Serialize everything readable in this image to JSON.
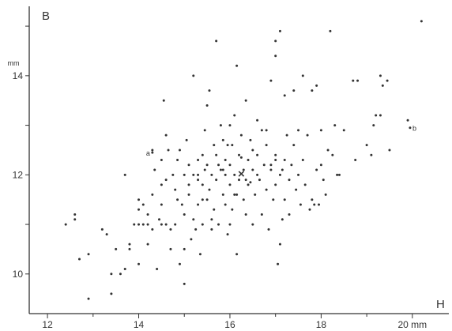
{
  "chart_data": {
    "type": "scatter",
    "panel_label": "B",
    "xlabel": "H",
    "ylabel": "",
    "y_unit": "mm",
    "x_unit": "mm",
    "xlim": [
      11.6,
      20.8
    ],
    "ylim": [
      9.2,
      15.4
    ],
    "x_ticks": [
      12,
      14,
      16,
      18,
      20
    ],
    "x_tick_labels": [
      "12",
      "14",
      "16",
      "18",
      "20 mm"
    ],
    "y_ticks": [
      10,
      12,
      14
    ],
    "y_tick_labels": [
      "10",
      "12",
      "14"
    ],
    "mean_marker": {
      "label": "×",
      "x": 16.25,
      "y": 12.02
    },
    "annotations": [
      {
        "text": "a",
        "x": 14.3,
        "y": 12.45
      },
      {
        "text": "b",
        "x": 19.95,
        "y": 12.95
      }
    ],
    "points": [
      [
        12.4,
        11.0
      ],
      [
        12.6,
        11.1
      ],
      [
        12.6,
        11.2
      ],
      [
        12.7,
        10.3
      ],
      [
        12.9,
        10.4
      ],
      [
        12.9,
        9.5
      ],
      [
        13.2,
        10.9
      ],
      [
        13.3,
        10.8
      ],
      [
        13.4,
        9.6
      ],
      [
        13.4,
        10.0
      ],
      [
        13.5,
        10.5
      ],
      [
        13.6,
        10.0
      ],
      [
        13.7,
        12.0
      ],
      [
        13.7,
        10.1
      ],
      [
        13.8,
        10.6
      ],
      [
        13.8,
        10.5
      ],
      [
        13.9,
        11.0
      ],
      [
        14.0,
        11.0
      ],
      [
        14.0,
        11.3
      ],
      [
        14.0,
        11.5
      ],
      [
        14.0,
        10.2
      ],
      [
        14.1,
        11.0
      ],
      [
        14.1,
        11.4
      ],
      [
        14.2,
        11.0
      ],
      [
        14.2,
        11.2
      ],
      [
        14.2,
        10.6
      ],
      [
        14.3,
        12.5
      ],
      [
        14.3,
        11.6
      ],
      [
        14.3,
        10.9
      ],
      [
        14.35,
        12.1
      ],
      [
        14.4,
        10.1
      ],
      [
        14.45,
        11.1
      ],
      [
        14.5,
        12.3
      ],
      [
        14.5,
        11.8
      ],
      [
        14.5,
        11.4
      ],
      [
        14.5,
        11.0
      ],
      [
        14.55,
        13.5
      ],
      [
        14.6,
        12.8
      ],
      [
        14.6,
        11.9
      ],
      [
        14.6,
        11.0
      ],
      [
        14.7,
        10.5
      ],
      [
        14.7,
        10.9
      ],
      [
        14.75,
        12.0
      ],
      [
        14.8,
        11.7
      ],
      [
        14.8,
        11.0
      ],
      [
        14.85,
        12.3
      ],
      [
        14.85,
        11.5
      ],
      [
        14.9,
        10.2
      ],
      [
        14.9,
        12.5
      ],
      [
        15.0,
        12.0
      ],
      [
        15.0,
        11.2
      ],
      [
        15.0,
        10.5
      ],
      [
        15.0,
        9.8
      ],
      [
        15.05,
        12.7
      ],
      [
        15.1,
        11.6
      ],
      [
        15.1,
        11.8
      ],
      [
        15.1,
        12.2
      ],
      [
        15.15,
        10.7
      ],
      [
        15.2,
        14.0
      ],
      [
        15.2,
        12.0
      ],
      [
        15.2,
        11.1
      ],
      [
        15.25,
        10.9
      ],
      [
        15.3,
        11.4
      ],
      [
        15.3,
        12.3
      ],
      [
        15.3,
        11.9
      ],
      [
        15.35,
        10.4
      ],
      [
        15.4,
        11.8
      ],
      [
        15.4,
        12.4
      ],
      [
        15.4,
        11.0
      ],
      [
        15.45,
        12.1
      ],
      [
        15.45,
        12.9
      ],
      [
        15.5,
        13.4
      ],
      [
        15.5,
        12.2
      ],
      [
        15.5,
        11.5
      ],
      [
        15.55,
        13.7
      ],
      [
        15.55,
        11.7
      ],
      [
        15.6,
        12.0
      ],
      [
        15.6,
        10.9
      ],
      [
        15.65,
        12.6
      ],
      [
        15.65,
        11.3
      ],
      [
        15.7,
        14.7
      ],
      [
        15.7,
        12.4
      ],
      [
        15.7,
        11.9
      ],
      [
        15.75,
        11.0
      ],
      [
        15.8,
        12.1
      ],
      [
        15.8,
        13.0
      ],
      [
        15.85,
        12.7
      ],
      [
        15.85,
        11.6
      ],
      [
        15.9,
        12.3
      ],
      [
        15.9,
        12.0
      ],
      [
        15.9,
        11.4
      ],
      [
        15.95,
        10.8
      ],
      [
        16.0,
        13.0
      ],
      [
        16.0,
        12.2
      ],
      [
        16.0,
        11.8
      ],
      [
        16.0,
        11.0
      ],
      [
        16.05,
        12.6
      ],
      [
        16.05,
        11.3
      ],
      [
        16.1,
        12.0
      ],
      [
        16.1,
        13.2
      ],
      [
        16.1,
        11.6
      ],
      [
        16.15,
        10.4
      ],
      [
        16.15,
        14.2
      ],
      [
        16.2,
        12.4
      ],
      [
        16.2,
        11.9
      ],
      [
        16.25,
        12.8
      ],
      [
        16.3,
        12.1
      ],
      [
        16.3,
        11.5
      ],
      [
        16.35,
        13.5
      ],
      [
        16.35,
        11.2
      ],
      [
        16.4,
        12.3
      ],
      [
        16.4,
        11.8
      ],
      [
        16.45,
        12.7
      ],
      [
        16.5,
        11.0
      ],
      [
        16.5,
        12.1
      ],
      [
        16.55,
        11.6
      ],
      [
        16.6,
        13.1
      ],
      [
        16.6,
        12.4
      ],
      [
        16.65,
        11.9
      ],
      [
        16.7,
        12.9
      ],
      [
        16.7,
        11.2
      ],
      [
        16.75,
        12.2
      ],
      [
        16.8,
        11.7
      ],
      [
        16.8,
        12.6
      ],
      [
        16.85,
        10.9
      ],
      [
        16.9,
        13.9
      ],
      [
        16.9,
        12.1
      ],
      [
        16.95,
        11.5
      ],
      [
        17.0,
        14.7
      ],
      [
        17.0,
        14.4
      ],
      [
        17.0,
        12.4
      ],
      [
        17.0,
        11.8
      ],
      [
        17.05,
        10.2
      ],
      [
        17.1,
        14.9
      ],
      [
        17.1,
        12.0
      ],
      [
        17.1,
        10.6
      ],
      [
        17.15,
        11.1
      ],
      [
        17.2,
        13.6
      ],
      [
        17.2,
        12.3
      ],
      [
        17.2,
        11.5
      ],
      [
        17.25,
        12.8
      ],
      [
        17.3,
        11.9
      ],
      [
        17.3,
        11.2
      ],
      [
        17.35,
        12.2
      ],
      [
        17.4,
        13.7
      ],
      [
        17.4,
        12.6
      ],
      [
        17.45,
        11.7
      ],
      [
        17.5,
        12.0
      ],
      [
        17.5,
        12.9
      ],
      [
        17.55,
        11.4
      ],
      [
        17.6,
        14.0
      ],
      [
        17.6,
        12.3
      ],
      [
        17.65,
        11.8
      ],
      [
        17.7,
        12.8
      ],
      [
        17.75,
        11.3
      ],
      [
        17.8,
        13.7
      ],
      [
        17.8,
        11.5
      ],
      [
        17.85,
        11.4
      ],
      [
        17.9,
        13.8
      ],
      [
        17.9,
        12.1
      ],
      [
        17.95,
        11.4
      ],
      [
        18.0,
        12.9
      ],
      [
        18.0,
        12.2
      ],
      [
        18.05,
        11.9
      ],
      [
        18.1,
        11.6
      ],
      [
        18.15,
        12.5
      ],
      [
        18.2,
        14.9
      ],
      [
        18.25,
        12.4
      ],
      [
        18.3,
        13.0
      ],
      [
        18.35,
        12.0
      ],
      [
        18.4,
        12.0
      ],
      [
        18.5,
        12.9
      ],
      [
        18.7,
        13.9
      ],
      [
        18.75,
        12.3
      ],
      [
        18.8,
        13.9
      ],
      [
        19.0,
        12.6
      ],
      [
        19.1,
        12.4
      ],
      [
        19.15,
        13.0
      ],
      [
        19.2,
        13.2
      ],
      [
        19.3,
        13.2
      ],
      [
        19.3,
        14.0
      ],
      [
        19.35,
        13.8
      ],
      [
        19.45,
        13.9
      ],
      [
        19.5,
        12.5
      ],
      [
        19.9,
        13.1
      ],
      [
        20.2,
        15.1
      ],
      [
        16.9,
        12.2
      ],
      [
        15.3,
        12.0
      ],
      [
        16.6,
        12.0
      ],
      [
        15.85,
        12.1
      ],
      [
        16.35,
        11.9
      ],
      [
        17.0,
        12.3
      ],
      [
        14.95,
        11.4
      ],
      [
        15.6,
        11.1
      ],
      [
        16.5,
        12.5
      ],
      [
        15.95,
        12.6
      ],
      [
        16.15,
        11.6
      ],
      [
        17.15,
        12.1
      ],
      [
        15.4,
        11.5
      ],
      [
        16.8,
        12.9
      ],
      [
        14.65,
        12.5
      ],
      [
        16.25,
        12.35
      ],
      [
        15.75,
        12.2
      ],
      [
        16.45,
        11.85
      ]
    ]
  }
}
